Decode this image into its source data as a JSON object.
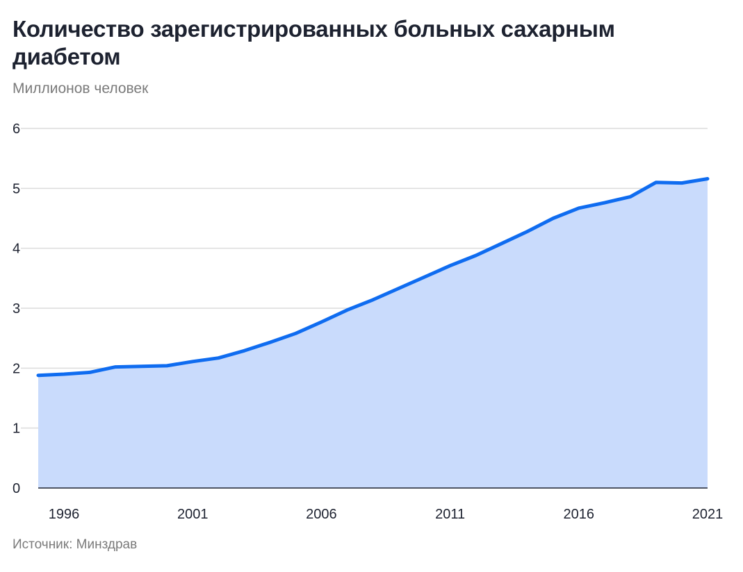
{
  "chart_data": {
    "type": "area",
    "title": "Количество зарегистрированных больных сахарным диабетом",
    "subtitle": "Миллионов человек",
    "source": "Источник: Минздрав",
    "xlabel": "",
    "ylabel": "",
    "x": [
      1995,
      1996,
      1997,
      1998,
      1999,
      2000,
      2001,
      2002,
      2003,
      2004,
      2005,
      2006,
      2007,
      2008,
      2009,
      2010,
      2011,
      2012,
      2013,
      2014,
      2015,
      2016,
      2017,
      2018,
      2019,
      2020,
      2021
    ],
    "values": [
      1.88,
      1.9,
      1.93,
      2.02,
      2.03,
      2.04,
      2.11,
      2.17,
      2.29,
      2.43,
      2.58,
      2.77,
      2.97,
      3.14,
      3.33,
      3.52,
      3.71,
      3.88,
      4.08,
      4.28,
      4.5,
      4.67,
      4.76,
      4.86,
      5.1,
      5.09,
      5.16
    ],
    "xlim": [
      1995,
      2021
    ],
    "ylim": [
      0,
      6
    ],
    "x_ticks": [
      "1996",
      "2001",
      "2006",
      "2011",
      "2016",
      "2021"
    ],
    "y_ticks": [
      "0",
      "1",
      "2",
      "3",
      "4",
      "5",
      "6"
    ],
    "grid": true,
    "legend": "none",
    "colors": {
      "line": "#0f6cf0",
      "fill": "#c9dbfc",
      "grid": "#dcdcdc",
      "baseline": "#1d2230"
    }
  }
}
